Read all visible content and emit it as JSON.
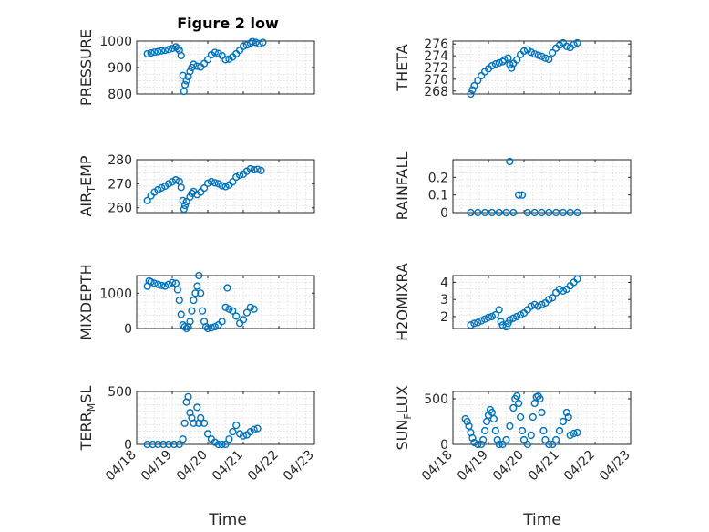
{
  "figure": {
    "title": "Figure 2 low",
    "xlabel": "Time",
    "xticks": [
      "04/18",
      "04/19",
      "04/20",
      "04/21",
      "04/22",
      "04/23"
    ],
    "marker_color": "#0072BD",
    "grid_color": "#d6d6d6"
  },
  "chart_data": [
    {
      "type": "scatter",
      "ylabel_main": "PRESSURE",
      "ylabel_sub": "",
      "xlim": [
        0,
        5
      ],
      "ylim": [
        800,
        1000
      ],
      "yticks": [
        800,
        900,
        1000
      ],
      "grid": true,
      "points": [
        [
          0.3,
          952
        ],
        [
          0.4,
          955
        ],
        [
          0.5,
          958
        ],
        [
          0.6,
          960
        ],
        [
          0.7,
          963
        ],
        [
          0.8,
          965
        ],
        [
          0.9,
          968
        ],
        [
          1.0,
          972
        ],
        [
          1.1,
          978
        ],
        [
          1.15,
          972
        ],
        [
          1.2,
          965
        ],
        [
          1.25,
          945
        ],
        [
          1.3,
          870
        ],
        [
          1.33,
          810
        ],
        [
          1.36,
          835
        ],
        [
          1.4,
          850
        ],
        [
          1.45,
          865
        ],
        [
          1.5,
          885
        ],
        [
          1.55,
          900
        ],
        [
          1.6,
          912
        ],
        [
          1.7,
          905
        ],
        [
          1.8,
          902
        ],
        [
          1.9,
          915
        ],
        [
          2.0,
          930
        ],
        [
          2.1,
          948
        ],
        [
          2.2,
          957
        ],
        [
          2.3,
          953
        ],
        [
          2.4,
          945
        ],
        [
          2.5,
          930
        ],
        [
          2.6,
          932
        ],
        [
          2.7,
          940
        ],
        [
          2.8,
          952
        ],
        [
          2.9,
          965
        ],
        [
          3.0,
          980
        ],
        [
          3.1,
          985
        ],
        [
          3.2,
          992
        ],
        [
          3.25,
          998
        ],
        [
          3.35,
          995
        ],
        [
          3.45,
          990
        ],
        [
          3.55,
          995
        ]
      ]
    },
    {
      "type": "scatter",
      "ylabel_main": "THETA",
      "ylabel_sub": "",
      "xlim": [
        0,
        5
      ],
      "ylim": [
        267.5,
        276.5
      ],
      "yticks": [
        268,
        270,
        272,
        274,
        276
      ],
      "grid": true,
      "points": [
        [
          0.5,
          267.5
        ],
        [
          0.55,
          268.2
        ],
        [
          0.6,
          268.9
        ],
        [
          0.7,
          269.8
        ],
        [
          0.8,
          270.6
        ],
        [
          0.9,
          271.3
        ],
        [
          1.0,
          271.8
        ],
        [
          1.1,
          272.3
        ],
        [
          1.2,
          272.6
        ],
        [
          1.3,
          272.8
        ],
        [
          1.4,
          273.0
        ],
        [
          1.45,
          273.3
        ],
        [
          1.55,
          273.6
        ],
        [
          1.6,
          272.5
        ],
        [
          1.65,
          271.9
        ],
        [
          1.7,
          272.7
        ],
        [
          1.8,
          273.3
        ],
        [
          1.9,
          274.2
        ],
        [
          2.0,
          274.8
        ],
        [
          2.1,
          275.0
        ],
        [
          2.2,
          274.6
        ],
        [
          2.3,
          274.3
        ],
        [
          2.4,
          274.1
        ],
        [
          2.5,
          273.9
        ],
        [
          2.6,
          273.6
        ],
        [
          2.7,
          273.4
        ],
        [
          2.8,
          274.5
        ],
        [
          2.9,
          275.3
        ],
        [
          3.0,
          275.8
        ],
        [
          3.1,
          276.2
        ],
        [
          3.2,
          275.6
        ],
        [
          3.3,
          275.4
        ],
        [
          3.4,
          275.9
        ],
        [
          3.5,
          276.2
        ]
      ]
    },
    {
      "type": "scatter",
      "ylabel_main": "AIR",
      "ylabel_sub": "T",
      "ylabel_tail": "EMP",
      "xlim": [
        0,
        5
      ],
      "ylim": [
        258,
        280
      ],
      "yticks": [
        260,
        270,
        280
      ],
      "grid": true,
      "points": [
        [
          0.3,
          263
        ],
        [
          0.4,
          265
        ],
        [
          0.5,
          266.5
        ],
        [
          0.6,
          267.5
        ],
        [
          0.7,
          268.3
        ],
        [
          0.8,
          269.0
        ],
        [
          0.9,
          270.0
        ],
        [
          1.0,
          270.8
        ],
        [
          1.1,
          271.6
        ],
        [
          1.2,
          271.0
        ],
        [
          1.25,
          268.5
        ],
        [
          1.3,
          263
        ],
        [
          1.33,
          259.5
        ],
        [
          1.36,
          261
        ],
        [
          1.4,
          262.5
        ],
        [
          1.5,
          264.5
        ],
        [
          1.55,
          266
        ],
        [
          1.6,
          266.8
        ],
        [
          1.7,
          265.5
        ],
        [
          1.8,
          266.5
        ],
        [
          1.9,
          268.2
        ],
        [
          2.0,
          270.2
        ],
        [
          2.1,
          270.9
        ],
        [
          2.2,
          270.4
        ],
        [
          2.3,
          270.0
        ],
        [
          2.4,
          269.2
        ],
        [
          2.5,
          268.8
        ],
        [
          2.6,
          269.5
        ],
        [
          2.7,
          270.8
        ],
        [
          2.8,
          272.8
        ],
        [
          2.9,
          273.6
        ],
        [
          3.0,
          274.0
        ],
        [
          3.1,
          275.2
        ],
        [
          3.2,
          276.2
        ],
        [
          3.3,
          275.8
        ],
        [
          3.4,
          276.0
        ],
        [
          3.5,
          275.5
        ]
      ]
    },
    {
      "type": "scatter",
      "ylabel_main": "RAINFALL",
      "ylabel_sub": "",
      "xlim": [
        0,
        5
      ],
      "ylim": [
        0,
        0.3
      ],
      "yticks": [
        0,
        0.1,
        0.2
      ],
      "grid": true,
      "points": [
        [
          0.5,
          0
        ],
        [
          0.7,
          0
        ],
        [
          0.9,
          0
        ],
        [
          1.1,
          0
        ],
        [
          1.3,
          0
        ],
        [
          1.5,
          0
        ],
        [
          1.6,
          0.29
        ],
        [
          1.7,
          0
        ],
        [
          1.85,
          0.1
        ],
        [
          1.95,
          0.1
        ],
        [
          2.1,
          0
        ],
        [
          2.3,
          0
        ],
        [
          2.5,
          0
        ],
        [
          2.7,
          0
        ],
        [
          2.9,
          0
        ],
        [
          3.1,
          0
        ],
        [
          3.3,
          0
        ],
        [
          3.5,
          0
        ]
      ]
    },
    {
      "type": "scatter",
      "ylabel_main": "MIXDEPTH",
      "ylabel_sub": "",
      "xlim": [
        0,
        5
      ],
      "ylim": [
        0,
        1500
      ],
      "yticks": [
        0,
        1000
      ],
      "grid": true,
      "points": [
        [
          0.3,
          1200
        ],
        [
          0.35,
          1350
        ],
        [
          0.4,
          1320
        ],
        [
          0.5,
          1280
        ],
        [
          0.6,
          1250
        ],
        [
          0.7,
          1220
        ],
        [
          0.8,
          1200
        ],
        [
          0.9,
          1250
        ],
        [
          1.0,
          1300
        ],
        [
          1.1,
          1280
        ],
        [
          1.15,
          1100
        ],
        [
          1.2,
          800
        ],
        [
          1.25,
          400
        ],
        [
          1.3,
          100
        ],
        [
          1.35,
          50
        ],
        [
          1.4,
          0
        ],
        [
          1.45,
          50
        ],
        [
          1.5,
          200
        ],
        [
          1.55,
          500
        ],
        [
          1.6,
          800
        ],
        [
          1.65,
          1000
        ],
        [
          1.7,
          1200
        ],
        [
          1.75,
          1500
        ],
        [
          1.8,
          1000
        ],
        [
          1.85,
          500
        ],
        [
          1.9,
          200
        ],
        [
          1.95,
          50
        ],
        [
          2.0,
          0
        ],
        [
          2.1,
          20
        ],
        [
          2.2,
          50
        ],
        [
          2.3,
          100
        ],
        [
          2.4,
          200
        ],
        [
          2.5,
          600
        ],
        [
          2.55,
          1150
        ],
        [
          2.6,
          550
        ],
        [
          2.7,
          500
        ],
        [
          2.8,
          350
        ],
        [
          2.9,
          150
        ],
        [
          3.0,
          250
        ],
        [
          3.1,
          450
        ],
        [
          3.2,
          600
        ],
        [
          3.3,
          550
        ]
      ]
    },
    {
      "type": "scatter",
      "ylabel_main": "H2OMIXRA",
      "ylabel_sub": "",
      "xlim": [
        0,
        5
      ],
      "ylim": [
        1.3,
        4.4
      ],
      "yticks": [
        2,
        3,
        4
      ],
      "grid": true,
      "points": [
        [
          0.5,
          1.5
        ],
        [
          0.6,
          1.6
        ],
        [
          0.7,
          1.65
        ],
        [
          0.8,
          1.75
        ],
        [
          0.9,
          1.85
        ],
        [
          1.0,
          1.95
        ],
        [
          1.1,
          2.0
        ],
        [
          1.2,
          2.1
        ],
        [
          1.3,
          2.4
        ],
        [
          1.35,
          1.7
        ],
        [
          1.4,
          1.5
        ],
        [
          1.5,
          1.4
        ],
        [
          1.55,
          1.6
        ],
        [
          1.6,
          1.8
        ],
        [
          1.7,
          1.9
        ],
        [
          1.8,
          2.0
        ],
        [
          1.9,
          2.1
        ],
        [
          2.0,
          2.2
        ],
        [
          2.1,
          2.4
        ],
        [
          2.2,
          2.6
        ],
        [
          2.3,
          2.7
        ],
        [
          2.4,
          2.6
        ],
        [
          2.5,
          2.7
        ],
        [
          2.6,
          2.8
        ],
        [
          2.7,
          3.0
        ],
        [
          2.8,
          3.1
        ],
        [
          2.9,
          3.4
        ],
        [
          3.0,
          3.6
        ],
        [
          3.1,
          3.5
        ],
        [
          3.2,
          3.6
        ],
        [
          3.3,
          3.8
        ],
        [
          3.4,
          4.0
        ],
        [
          3.5,
          4.2
        ]
      ]
    },
    {
      "type": "scatter",
      "ylabel_main": "TERR",
      "ylabel_sub": "M",
      "ylabel_tail": "SL",
      "xlim": [
        0,
        5
      ],
      "ylim": [
        0,
        500
      ],
      "yticks": [
        0,
        500
      ],
      "grid": true,
      "points": [
        [
          0.3,
          0
        ],
        [
          0.45,
          0
        ],
        [
          0.6,
          0
        ],
        [
          0.75,
          0
        ],
        [
          0.9,
          0
        ],
        [
          1.05,
          0
        ],
        [
          1.2,
          0
        ],
        [
          1.3,
          50
        ],
        [
          1.35,
          200
        ],
        [
          1.4,
          400
        ],
        [
          1.45,
          450
        ],
        [
          1.5,
          300
        ],
        [
          1.55,
          250
        ],
        [
          1.6,
          200
        ],
        [
          1.7,
          350
        ],
        [
          1.75,
          200
        ],
        [
          1.8,
          250
        ],
        [
          1.9,
          200
        ],
        [
          2.0,
          100
        ],
        [
          2.1,
          50
        ],
        [
          2.2,
          20
        ],
        [
          2.3,
          0
        ],
        [
          2.4,
          0
        ],
        [
          2.5,
          0
        ],
        [
          2.6,
          50
        ],
        [
          2.7,
          120
        ],
        [
          2.8,
          180
        ],
        [
          2.9,
          100
        ],
        [
          3.0,
          80
        ],
        [
          3.1,
          90
        ],
        [
          3.2,
          120
        ],
        [
          3.3,
          140
        ],
        [
          3.4,
          150
        ]
      ]
    },
    {
      "type": "scatter",
      "ylabel_main": "SUN",
      "ylabel_sub": "F",
      "ylabel_tail": "LUX",
      "xlim": [
        0,
        5
      ],
      "ylim": [
        0,
        580
      ],
      "yticks": [
        0,
        500
      ],
      "grid": true,
      "points": [
        [
          0.35,
          280
        ],
        [
          0.4,
          250
        ],
        [
          0.45,
          200
        ],
        [
          0.5,
          130
        ],
        [
          0.55,
          70
        ],
        [
          0.6,
          20
        ],
        [
          0.7,
          0
        ],
        [
          0.8,
          0
        ],
        [
          0.85,
          50
        ],
        [
          0.9,
          150
        ],
        [
          0.95,
          250
        ],
        [
          1.0,
          320
        ],
        [
          1.05,
          380
        ],
        [
          1.1,
          350
        ],
        [
          1.15,
          280
        ],
        [
          1.2,
          150
        ],
        [
          1.25,
          50
        ],
        [
          1.3,
          0
        ],
        [
          1.4,
          0
        ],
        [
          1.5,
          50
        ],
        [
          1.6,
          200
        ],
        [
          1.7,
          400
        ],
        [
          1.75,
          500
        ],
        [
          1.8,
          530
        ],
        [
          1.85,
          450
        ],
        [
          1.9,
          300
        ],
        [
          1.95,
          150
        ],
        [
          2.0,
          50
        ],
        [
          2.1,
          0
        ],
        [
          2.2,
          100
        ],
        [
          2.25,
          300
        ],
        [
          2.3,
          450
        ],
        [
          2.35,
          520
        ],
        [
          2.4,
          530
        ],
        [
          2.45,
          500
        ],
        [
          2.5,
          350
        ],
        [
          2.55,
          150
        ],
        [
          2.6,
          50
        ],
        [
          2.7,
          0
        ],
        [
          2.8,
          0
        ],
        [
          2.9,
          50
        ],
        [
          3.0,
          150
        ],
        [
          3.1,
          250
        ],
        [
          3.2,
          350
        ],
        [
          3.25,
          300
        ],
        [
          3.3,
          100
        ],
        [
          3.4,
          120
        ],
        [
          3.5,
          130
        ]
      ]
    }
  ]
}
